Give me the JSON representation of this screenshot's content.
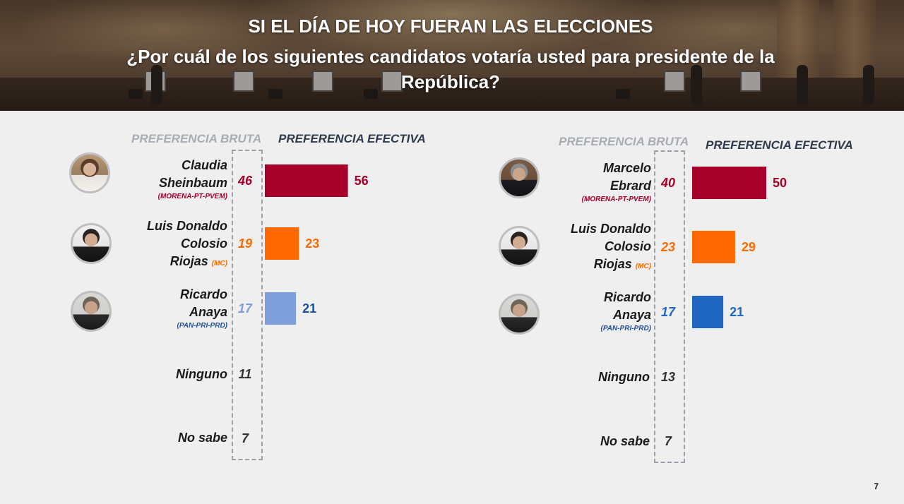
{
  "header": {
    "title": "SI EL DÍA DE HOY FUERAN LAS ELECCIONES",
    "question": "¿Por cuál de los siguientes candidatos votaría usted para presidente de la República?"
  },
  "column_headers": {
    "bruta": "PREFERENCIA BRUTA",
    "efectiva": "PREFERENCIA EFECTIVA"
  },
  "colors": {
    "morena": "#a6002a",
    "mc": "#ff6a00",
    "pan_left": "#7f9fdb",
    "pan_right": "#1f66c1",
    "neutral": "#333333"
  },
  "chart_data": [
    {
      "type": "bar",
      "scenario": "left",
      "categories": [
        "Claudia Sheinbaum",
        "Luis Donaldo Colosio Riojas",
        "Ricardo Anaya",
        "Ninguno",
        "No sabe"
      ],
      "series": [
        {
          "name": "PREFERENCIA BRUTA",
          "values": [
            46,
            19,
            17,
            11,
            7
          ]
        },
        {
          "name": "PREFERENCIA EFECTIVA",
          "values": [
            56,
            23,
            21,
            null,
            null
          ]
        }
      ],
      "candidates": [
        {
          "name_lines": [
            "Claudia",
            "Sheinbaum"
          ],
          "party": "(MORENA-PT-PVEM)",
          "party_inline": false,
          "bruta": 46,
          "efectiva": 56,
          "color": "#a6002a",
          "photo": "claudia-sheinbaum-photo"
        },
        {
          "name_lines": [
            "Luis Donaldo",
            "Colosio",
            "Riojas"
          ],
          "party": "(MC)",
          "party_inline": true,
          "bruta": 19,
          "efectiva": 23,
          "color": "#ff6a00",
          "photo": "luis-donaldo-colosio-photo"
        },
        {
          "name_lines": [
            "Ricardo",
            "Anaya"
          ],
          "party": "(PAN-PRI-PRD)",
          "party_inline": false,
          "bruta": 17,
          "efectiva": 21,
          "color": "#7f9fdb",
          "photo": "ricardo-anaya-photo"
        },
        {
          "name_lines": [
            "Ninguno"
          ],
          "party": "",
          "party_inline": false,
          "bruta": 11,
          "efectiva": null,
          "color": "#333333",
          "photo": ""
        },
        {
          "name_lines": [
            "No sabe"
          ],
          "party": "",
          "party_inline": false,
          "bruta": 7,
          "efectiva": null,
          "color": "#333333",
          "photo": ""
        }
      ]
    },
    {
      "type": "bar",
      "scenario": "right",
      "categories": [
        "Marcelo Ebrard",
        "Luis Donaldo Colosio Riojas",
        "Ricardo Anaya",
        "Ninguno",
        "No sabe"
      ],
      "series": [
        {
          "name": "PREFERENCIA BRUTA",
          "values": [
            40,
            23,
            17,
            13,
            7
          ]
        },
        {
          "name": "PREFERENCIA EFECTIVA",
          "values": [
            50,
            29,
            21,
            null,
            null
          ]
        }
      ],
      "candidates": [
        {
          "name_lines": [
            "Marcelo",
            "Ebrard"
          ],
          "party": "(MORENA-PT-PVEM)",
          "party_inline": false,
          "bruta": 40,
          "efectiva": 50,
          "color": "#a6002a",
          "photo": "marcelo-ebrard-photo"
        },
        {
          "name_lines": [
            "Luis Donaldo",
            "Colosio",
            "Riojas"
          ],
          "party": "(MC)",
          "party_inline": true,
          "bruta": 23,
          "efectiva": 29,
          "color": "#ff6a00",
          "photo": "luis-donaldo-colosio-photo"
        },
        {
          "name_lines": [
            "Ricardo",
            "Anaya"
          ],
          "party": "(PAN-PRI-PRD)",
          "party_inline": false,
          "bruta": 17,
          "efectiva": 21,
          "color": "#1f66c1",
          "photo": "ricardo-anaya-photo"
        },
        {
          "name_lines": [
            "Ninguno"
          ],
          "party": "",
          "party_inline": false,
          "bruta": 13,
          "efectiva": null,
          "color": "#333333",
          "photo": ""
        },
        {
          "name_lines": [
            "No sabe"
          ],
          "party": "",
          "party_inline": false,
          "bruta": 7,
          "efectiva": null,
          "color": "#333333",
          "photo": ""
        }
      ]
    }
  ],
  "page_number": "7"
}
